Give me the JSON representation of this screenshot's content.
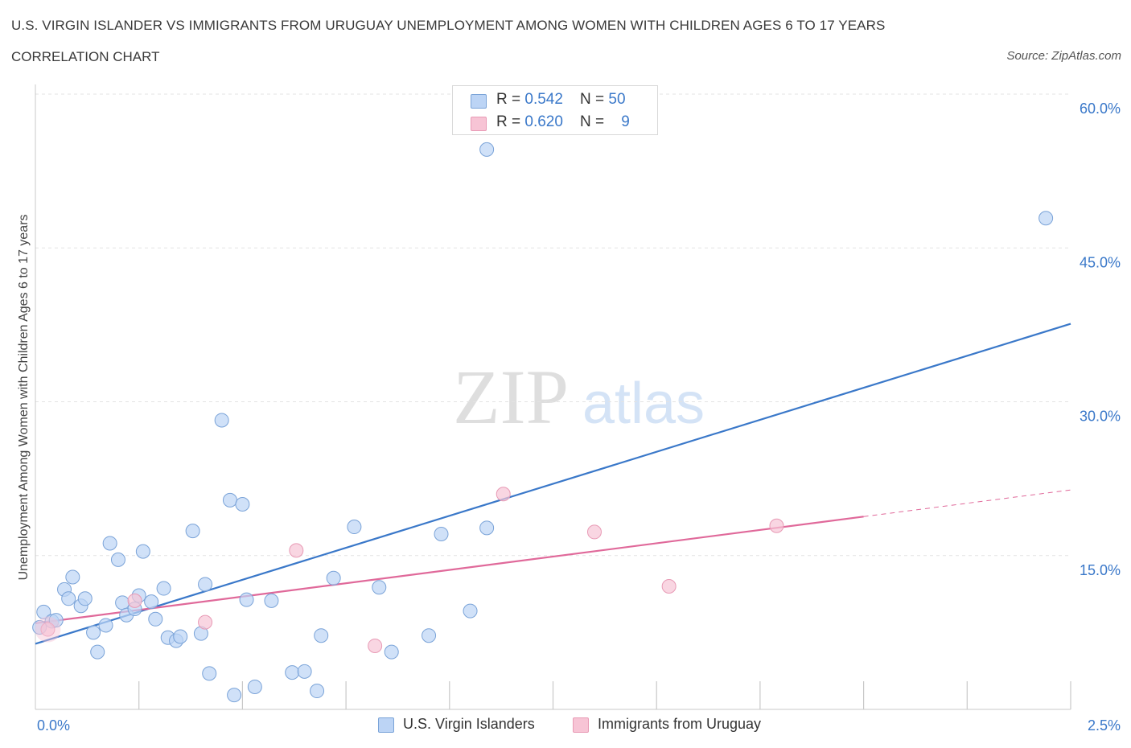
{
  "title": "U.S. VIRGIN ISLANDER VS IMMIGRANTS FROM URUGUAY UNEMPLOYMENT AMONG WOMEN WITH CHILDREN AGES 6 TO 17 YEARS",
  "subtitle": "CORRELATION CHART",
  "source": "Source: ZipAtlas.com",
  "watermark": {
    "zip": "ZIP",
    "atlas": "atlas"
  },
  "colors": {
    "blue": "#3a78c9",
    "blue_fill": "#bcd4f5",
    "blue_stroke": "#7aa3d8",
    "pink": "#e0699a",
    "pink_fill": "#f7c4d5",
    "pink_stroke": "#e89ab5",
    "grid": "#e3e3e3",
    "axis_label": "#3a78c9"
  },
  "legend": {
    "rows": [
      {
        "r_label": "R = ",
        "r_value": "0.542",
        "n_label": "N = ",
        "n_value": "50",
        "series": "blue"
      },
      {
        "r_label": "R = ",
        "r_value": "0.620",
        "n_label": "N = ",
        "n_value": "9",
        "series": "pink"
      }
    ]
  },
  "bottom_legend": [
    "U.S. Virgin Islanders",
    "Immigrants from Uruguay"
  ],
  "chart_data": {
    "type": "scatter",
    "title": "U.S. VIRGIN ISLANDER VS IMMIGRANTS FROM URUGUAY UNEMPLOYMENT AMONG WOMEN WITH CHILDREN AGES 6 TO 17 YEARS",
    "xlabel": "",
    "ylabel": "Unemployment Among Women with Children Ages 6 to 17 years",
    "xlim": [
      0,
      2.5
    ],
    "ylim": [
      0,
      60
    ],
    "x_tick_labels": [
      "0.0%",
      "2.5%"
    ],
    "y_ticks": [
      15,
      30,
      45,
      60
    ],
    "y_tick_labels": [
      "15.0%",
      "30.0%",
      "45.0%",
      "60.0%"
    ],
    "grid": true,
    "legend_position": "top-center",
    "series": [
      {
        "name": "U.S. Virgin Islanders",
        "color": "blue",
        "R": 0.542,
        "N": 50,
        "points": [
          [
            0.01,
            8.0
          ],
          [
            0.02,
            9.5
          ],
          [
            0.04,
            8.6
          ],
          [
            0.05,
            8.7
          ],
          [
            0.07,
            11.7
          ],
          [
            0.08,
            10.8
          ],
          [
            0.09,
            12.9
          ],
          [
            0.11,
            10.1
          ],
          [
            0.12,
            10.8
          ],
          [
            0.14,
            7.5
          ],
          [
            0.15,
            5.6
          ],
          [
            0.17,
            8.2
          ],
          [
            0.18,
            16.2
          ],
          [
            0.2,
            14.6
          ],
          [
            0.21,
            10.4
          ],
          [
            0.22,
            9.2
          ],
          [
            0.24,
            9.8
          ],
          [
            0.25,
            11.1
          ],
          [
            0.26,
            15.4
          ],
          [
            0.28,
            10.5
          ],
          [
            0.29,
            8.8
          ],
          [
            0.31,
            11.8
          ],
          [
            0.32,
            7.0
          ],
          [
            0.34,
            6.7
          ],
          [
            0.35,
            7.1
          ],
          [
            0.38,
            17.4
          ],
          [
            0.4,
            7.4
          ],
          [
            0.41,
            12.2
          ],
          [
            0.42,
            3.5
          ],
          [
            0.45,
            28.2
          ],
          [
            0.47,
            20.4
          ],
          [
            0.48,
            1.4
          ],
          [
            0.5,
            20.0
          ],
          [
            0.51,
            10.7
          ],
          [
            0.53,
            2.2
          ],
          [
            0.57,
            10.6
          ],
          [
            0.62,
            3.6
          ],
          [
            0.65,
            3.7
          ],
          [
            0.68,
            1.8
          ],
          [
            0.69,
            7.2
          ],
          [
            0.72,
            12.8
          ],
          [
            0.77,
            17.8
          ],
          [
            0.83,
            11.9
          ],
          [
            0.86,
            5.6
          ],
          [
            0.95,
            7.2
          ],
          [
            0.98,
            17.1
          ],
          [
            1.05,
            9.6
          ],
          [
            1.09,
            17.7
          ],
          [
            1.09,
            54.6
          ],
          [
            2.44,
            47.9
          ]
        ]
      },
      {
        "name": "Immigrants from Uruguay",
        "color": "pink",
        "R": 0.62,
        "N": 9,
        "points": [
          [
            0.03,
            7.8
          ],
          [
            0.24,
            10.6
          ],
          [
            0.41,
            8.5
          ],
          [
            0.63,
            15.5
          ],
          [
            0.82,
            6.2
          ],
          [
            1.13,
            21.0
          ],
          [
            1.35,
            17.3
          ],
          [
            1.53,
            12.0
          ],
          [
            1.79,
            17.9
          ]
        ]
      }
    ],
    "trendlines": [
      {
        "series": "U.S. Virgin Islanders",
        "x": [
          0,
          2.5
        ],
        "y": [
          6.4,
          37.6
        ],
        "style": "solid"
      },
      {
        "series": "Immigrants from Uruguay",
        "x": [
          0,
          2.0
        ],
        "y": [
          8.4,
          18.8
        ],
        "style": "solid"
      },
      {
        "series": "Immigrants from Uruguay",
        "x": [
          2.0,
          2.5
        ],
        "y": [
          18.8,
          21.4
        ],
        "style": "dashed"
      }
    ]
  }
}
